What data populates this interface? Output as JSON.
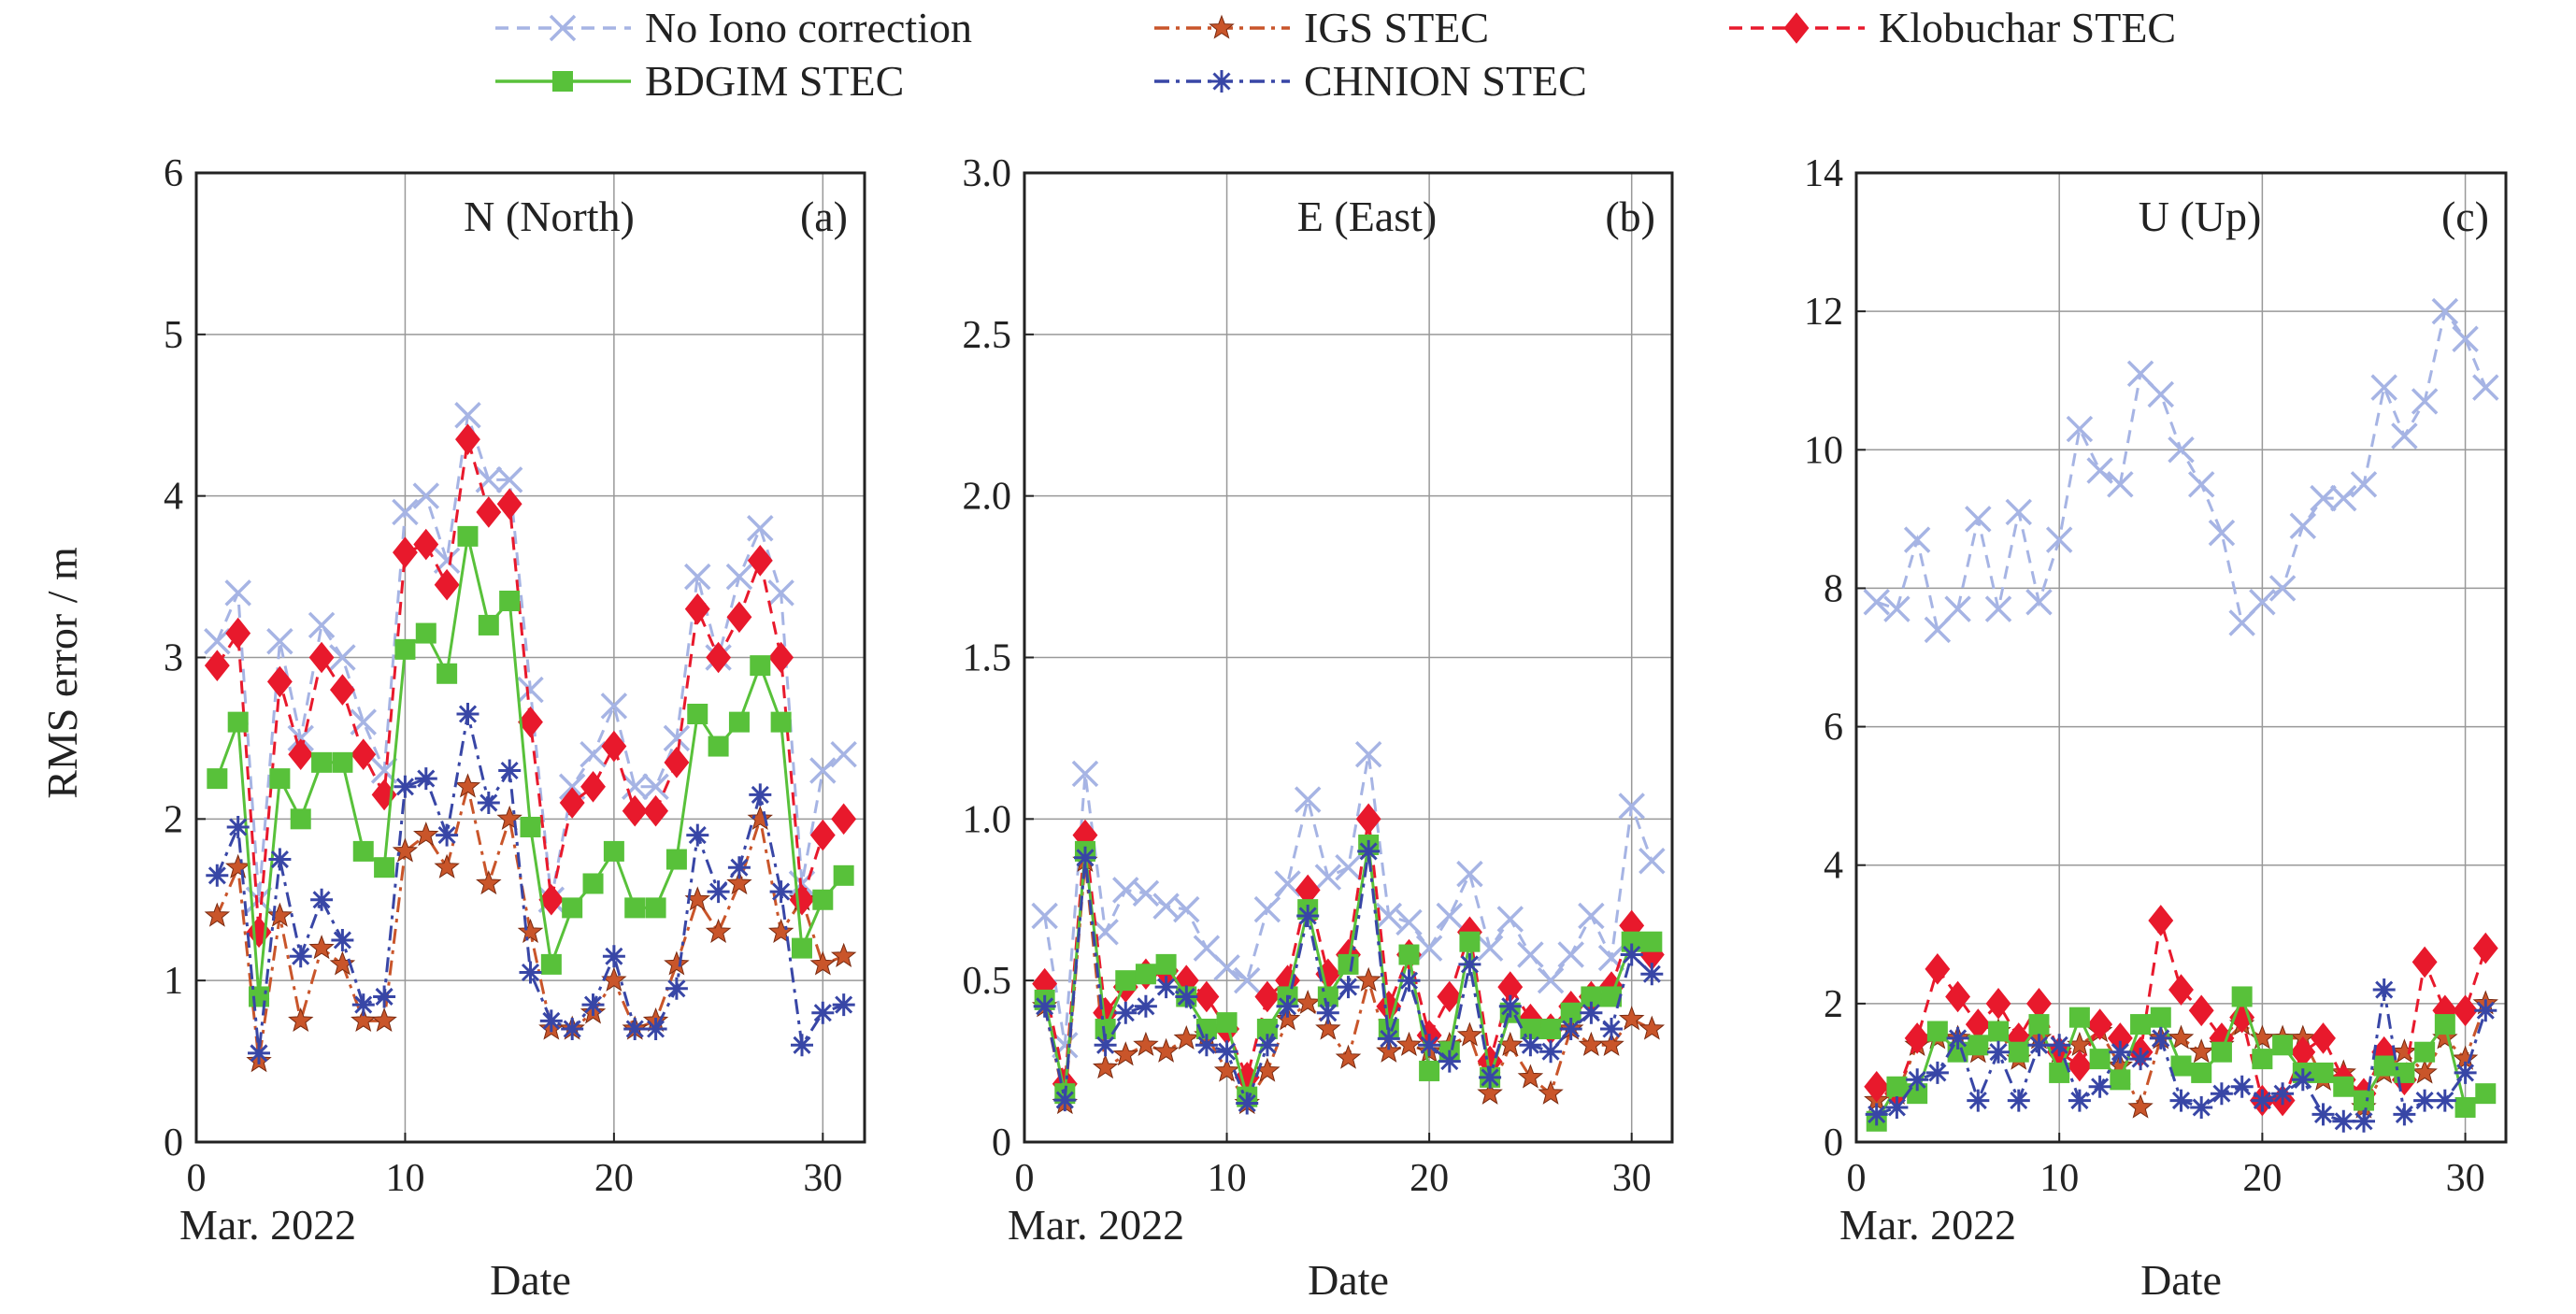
{
  "legend": [
    {
      "label": "No Iono correction",
      "key": "noiono"
    },
    {
      "label": "IGS STEC",
      "key": "igs"
    },
    {
      "label": "Klobuchar STEC",
      "key": "klob"
    },
    {
      "label": "BDGIM STEC",
      "key": "bdgim"
    },
    {
      "label": "CHNION STEC",
      "key": "chnion"
    }
  ],
  "styles": {
    "noiono": {
      "color": "#a6b4e4",
      "marker": "x",
      "line": "dash"
    },
    "igs": {
      "color": "#c9552a",
      "marker": "star",
      "line": "dashdot"
    },
    "klob": {
      "color": "#e8192c",
      "marker": "diamond",
      "line": "dash"
    },
    "bdgim": {
      "color": "#58c13a",
      "marker": "square",
      "line": "solid"
    },
    "chnion": {
      "color": "#3846a6",
      "marker": "asterisk",
      "line": "dashdot"
    }
  },
  "shared": {
    "ylabel": "RMS error / m",
    "xlabel": "Date",
    "xsub": "Mar. 2022",
    "xticks": [
      0,
      10,
      20,
      30
    ],
    "xlim": [
      0,
      32
    ]
  },
  "chart_data": [
    {
      "type": "line",
      "panel_label": "N (North)",
      "letter": "(a)",
      "ylim": [
        0,
        6
      ],
      "yticks": [
        "0",
        "1",
        "2",
        "3",
        "4",
        "5",
        "6"
      ],
      "x": [
        1,
        2,
        3,
        4,
        5,
        6,
        7,
        8,
        9,
        10,
        11,
        12,
        13,
        14,
        15,
        16,
        17,
        18,
        19,
        20,
        21,
        22,
        23,
        24,
        25,
        26,
        27,
        28,
        29,
        30,
        31
      ],
      "series": [
        {
          "key": "noiono",
          "values": [
            3.1,
            3.4,
            1.5,
            3.1,
            2.5,
            3.2,
            3.0,
            2.6,
            2.3,
            3.9,
            4.0,
            3.6,
            4.5,
            4.1,
            4.1,
            2.8,
            1.5,
            2.2,
            2.4,
            2.7,
            2.2,
            2.2,
            2.5,
            3.5,
            3.0,
            3.5,
            3.8,
            3.4,
            1.6,
            2.3,
            2.4
          ]
        },
        {
          "key": "igs",
          "values": [
            1.4,
            1.7,
            0.5,
            1.4,
            0.75,
            1.2,
            1.1,
            0.75,
            0.75,
            1.8,
            1.9,
            1.7,
            2.2,
            1.6,
            2.0,
            1.3,
            0.7,
            0.7,
            0.8,
            1.0,
            0.7,
            0.75,
            1.1,
            1.5,
            1.3,
            1.6,
            2.0,
            1.3,
            1.5,
            1.1,
            1.15
          ]
        },
        {
          "key": "klob",
          "values": [
            2.95,
            3.15,
            1.3,
            2.85,
            2.4,
            3.0,
            2.8,
            2.4,
            2.15,
            3.65,
            3.7,
            3.45,
            4.35,
            3.9,
            3.95,
            2.6,
            1.5,
            2.1,
            2.2,
            2.45,
            2.05,
            2.05,
            2.35,
            3.3,
            3.0,
            3.25,
            3.6,
            3.0,
            1.5,
            1.9,
            2.0
          ]
        },
        {
          "key": "bdgim",
          "values": [
            2.25,
            2.6,
            0.9,
            2.25,
            2.0,
            2.35,
            2.35,
            1.8,
            1.7,
            3.05,
            3.15,
            2.9,
            3.75,
            3.2,
            3.35,
            1.95,
            1.1,
            1.45,
            1.6,
            1.8,
            1.45,
            1.45,
            1.75,
            2.65,
            2.45,
            2.6,
            2.95,
            2.6,
            1.2,
            1.5,
            1.65
          ]
        },
        {
          "key": "chnion",
          "values": [
            1.65,
            1.95,
            0.55,
            1.75,
            1.15,
            1.5,
            1.25,
            0.85,
            0.9,
            2.2,
            2.25,
            1.9,
            2.65,
            2.1,
            2.3,
            1.05,
            0.75,
            0.7,
            0.85,
            1.15,
            0.7,
            0.7,
            0.95,
            1.9,
            1.55,
            1.7,
            2.15,
            1.55,
            0.6,
            0.8,
            0.85
          ]
        }
      ]
    },
    {
      "type": "line",
      "panel_label": "E (East)",
      "letter": "(b)",
      "ylim": [
        0,
        3
      ],
      "yticks": [
        "0",
        "0.5",
        "1.0",
        "1.5",
        "2.0",
        "2.5",
        "3.0"
      ],
      "x": [
        1,
        2,
        3,
        4,
        5,
        6,
        7,
        8,
        9,
        10,
        11,
        12,
        13,
        14,
        15,
        16,
        17,
        18,
        19,
        20,
        21,
        22,
        23,
        24,
        25,
        26,
        27,
        28,
        29,
        30,
        31
      ],
      "series": [
        {
          "key": "noiono",
          "values": [
            0.7,
            0.3,
            1.14,
            0.65,
            0.78,
            0.77,
            0.73,
            0.72,
            0.6,
            0.54,
            0.5,
            0.72,
            0.8,
            1.06,
            0.82,
            0.85,
            1.2,
            0.7,
            0.68,
            0.6,
            0.7,
            0.83,
            0.6,
            0.69,
            0.58,
            0.5,
            0.58,
            0.7,
            0.57,
            1.04,
            0.87
          ]
        },
        {
          "key": "igs",
          "values": [
            0.42,
            0.12,
            0.87,
            0.23,
            0.27,
            0.3,
            0.28,
            0.32,
            0.33,
            0.22,
            0.12,
            0.22,
            0.38,
            0.43,
            0.35,
            0.26,
            0.5,
            0.28,
            0.3,
            0.28,
            0.3,
            0.33,
            0.15,
            0.3,
            0.2,
            0.15,
            0.35,
            0.3,
            0.3,
            0.38,
            0.35
          ]
        },
        {
          "key": "klob",
          "values": [
            0.49,
            0.18,
            0.95,
            0.4,
            0.48,
            0.52,
            0.53,
            0.5,
            0.45,
            0.35,
            0.2,
            0.45,
            0.5,
            0.78,
            0.52,
            0.58,
            1.0,
            0.42,
            0.58,
            0.33,
            0.45,
            0.65,
            0.25,
            0.48,
            0.38,
            0.35,
            0.42,
            0.45,
            0.48,
            0.67,
            0.58
          ]
        },
        {
          "key": "bdgim",
          "values": [
            0.44,
            0.15,
            0.9,
            0.35,
            0.5,
            0.52,
            0.55,
            0.45,
            0.35,
            0.37,
            0.14,
            0.35,
            0.45,
            0.72,
            0.45,
            0.55,
            0.92,
            0.35,
            0.58,
            0.22,
            0.28,
            0.62,
            0.2,
            0.4,
            0.35,
            0.35,
            0.4,
            0.45,
            0.45,
            0.62,
            0.62
          ]
        },
        {
          "key": "chnion",
          "values": [
            0.42,
            0.13,
            0.88,
            0.3,
            0.4,
            0.42,
            0.48,
            0.45,
            0.3,
            0.28,
            0.12,
            0.3,
            0.42,
            0.7,
            0.4,
            0.48,
            0.9,
            0.32,
            0.5,
            0.3,
            0.25,
            0.55,
            0.2,
            0.42,
            0.3,
            0.28,
            0.35,
            0.4,
            0.35,
            0.58,
            0.52
          ]
        }
      ]
    },
    {
      "type": "line",
      "panel_label": "U (Up)",
      "letter": "(c)",
      "ylim": [
        0,
        14
      ],
      "yticks": [
        "0",
        "2",
        "4",
        "6",
        "8",
        "10",
        "12",
        "14"
      ],
      "x": [
        1,
        2,
        3,
        4,
        5,
        6,
        7,
        8,
        9,
        10,
        11,
        12,
        13,
        14,
        15,
        16,
        17,
        18,
        19,
        20,
        21,
        22,
        23,
        24,
        25,
        26,
        27,
        28,
        29,
        30,
        31
      ],
      "series": [
        {
          "key": "noiono",
          "values": [
            7.8,
            7.7,
            8.7,
            7.4,
            7.7,
            9.0,
            7.7,
            9.1,
            7.8,
            8.7,
            10.3,
            9.7,
            9.5,
            11.1,
            10.8,
            10.0,
            9.5,
            8.8,
            7.5,
            7.8,
            8.0,
            8.9,
            9.3,
            9.3,
            9.5,
            10.9,
            10.2,
            10.7,
            12.0,
            11.6,
            10.9
          ]
        },
        {
          "key": "igs",
          "values": [
            0.6,
            0.7,
            1.4,
            1.5,
            1.5,
            1.3,
            1.6,
            1.2,
            1.5,
            1.3,
            1.4,
            1.6,
            1.1,
            0.5,
            1.5,
            1.5,
            1.3,
            1.4,
            1.7,
            1.5,
            1.5,
            1.5,
            0.9,
            1.0,
            0.5,
            1.0,
            1.3,
            1.0,
            1.5,
            1.2,
            2.0
          ]
        },
        {
          "key": "klob",
          "values": [
            0.8,
            0.7,
            1.5,
            2.5,
            2.1,
            1.7,
            2.0,
            1.5,
            2.0,
            1.3,
            1.1,
            1.7,
            1.5,
            1.3,
            3.2,
            2.2,
            1.9,
            1.5,
            1.8,
            0.6,
            0.6,
            1.3,
            1.5,
            0.9,
            0.7,
            1.3,
            0.9,
            2.6,
            1.9,
            1.9,
            2.8
          ]
        },
        {
          "key": "bdgim",
          "values": [
            0.3,
            0.8,
            0.7,
            1.6,
            1.3,
            1.4,
            1.6,
            1.3,
            1.7,
            1.0,
            1.8,
            1.2,
            0.9,
            1.7,
            1.8,
            1.1,
            1.0,
            1.3,
            2.1,
            1.2,
            1.4,
            1.0,
            1.0,
            0.8,
            0.6,
            1.1,
            1.0,
            1.3,
            1.7,
            0.5,
            0.7
          ]
        },
        {
          "key": "chnion",
          "values": [
            0.4,
            0.5,
            0.9,
            1.0,
            1.5,
            0.6,
            1.3,
            0.6,
            1.4,
            1.4,
            0.6,
            0.8,
            1.3,
            1.2,
            1.5,
            0.6,
            0.5,
            0.7,
            0.8,
            0.6,
            0.7,
            0.9,
            0.4,
            0.3,
            0.3,
            2.2,
            0.4,
            0.6,
            0.6,
            1.0,
            1.9
          ]
        }
      ]
    }
  ]
}
